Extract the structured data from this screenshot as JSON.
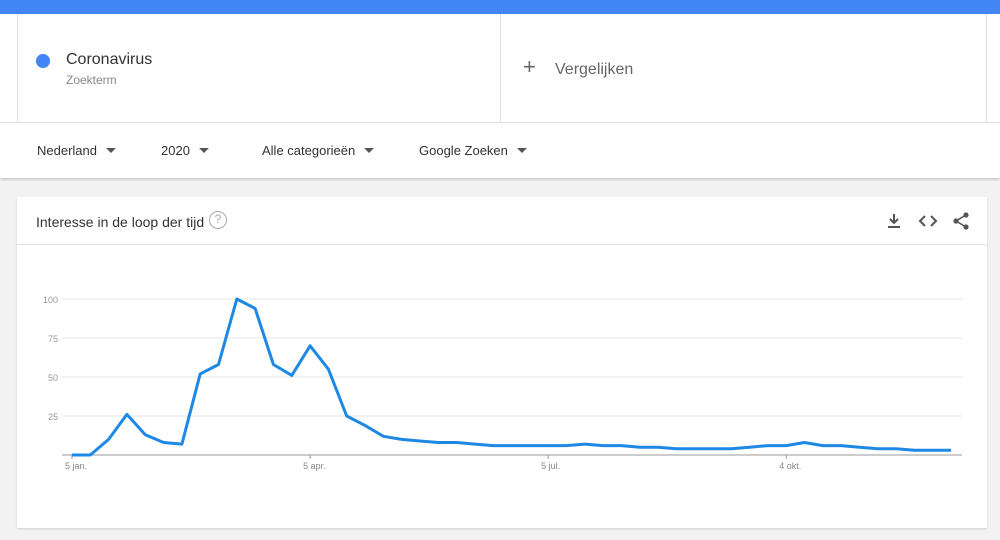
{
  "colors": {
    "accent": "#4285f4",
    "series": "#1e88e5"
  },
  "term": {
    "name": "Coronavirus",
    "type": "Zoekterm",
    "color": "#4285f4"
  },
  "compare": {
    "icon": "plus-icon",
    "label": "Vergelijken"
  },
  "filters": [
    {
      "label": "Nederland"
    },
    {
      "label": "2020"
    },
    {
      "label": "Alle categorieën"
    },
    {
      "label": "Google Zoeken"
    }
  ],
  "card": {
    "title": "Interesse in de loop der tijd",
    "help_icon": "?",
    "actions": [
      "download-icon",
      "embed-code-icon",
      "share-icon"
    ]
  },
  "chart_data": {
    "type": "line",
    "title": "",
    "xlabel": "",
    "ylabel": "",
    "ylim": [
      0,
      100
    ],
    "grid": true,
    "legend": "none",
    "y_ticks": [
      "100",
      "75",
      "50",
      "25"
    ],
    "x_ticks": [
      {
        "label": "5 jan.",
        "date": "2020-01-05"
      },
      {
        "label": "5 apr.",
        "date": "2020-04-05"
      },
      {
        "label": "5 jul.",
        "date": "2020-07-05"
      },
      {
        "label": "4 okt.",
        "date": "2020-10-04"
      }
    ],
    "x": [
      "2020-01-05",
      "2020-01-12",
      "2020-01-19",
      "2020-01-26",
      "2020-02-02",
      "2020-02-09",
      "2020-02-16",
      "2020-02-23",
      "2020-03-01",
      "2020-03-08",
      "2020-03-15",
      "2020-03-22",
      "2020-03-29",
      "2020-04-05",
      "2020-04-12",
      "2020-04-19",
      "2020-04-26",
      "2020-05-03",
      "2020-05-10",
      "2020-05-17",
      "2020-05-24",
      "2020-05-31",
      "2020-06-07",
      "2020-06-14",
      "2020-06-21",
      "2020-06-28",
      "2020-07-05",
      "2020-07-12",
      "2020-07-19",
      "2020-07-26",
      "2020-08-02",
      "2020-08-09",
      "2020-08-16",
      "2020-08-23",
      "2020-08-30",
      "2020-09-06",
      "2020-09-13",
      "2020-09-20",
      "2020-09-27",
      "2020-10-04",
      "2020-10-11",
      "2020-10-18",
      "2020-10-25",
      "2020-11-01",
      "2020-11-08",
      "2020-11-15",
      "2020-11-22",
      "2020-11-29",
      "2020-12-06"
    ],
    "series": [
      {
        "values": [
          0,
          0,
          10,
          26,
          13,
          8,
          7,
          52,
          58,
          100,
          94,
          58,
          51,
          70,
          55,
          25,
          19,
          12,
          10,
          9,
          8,
          8,
          7,
          6,
          6,
          6,
          6,
          6,
          7,
          6,
          6,
          5,
          5,
          4,
          4,
          4,
          4,
          5,
          6,
          6,
          8,
          6,
          6,
          5,
          4,
          4,
          3,
          3,
          3
        ]
      }
    ]
  }
}
